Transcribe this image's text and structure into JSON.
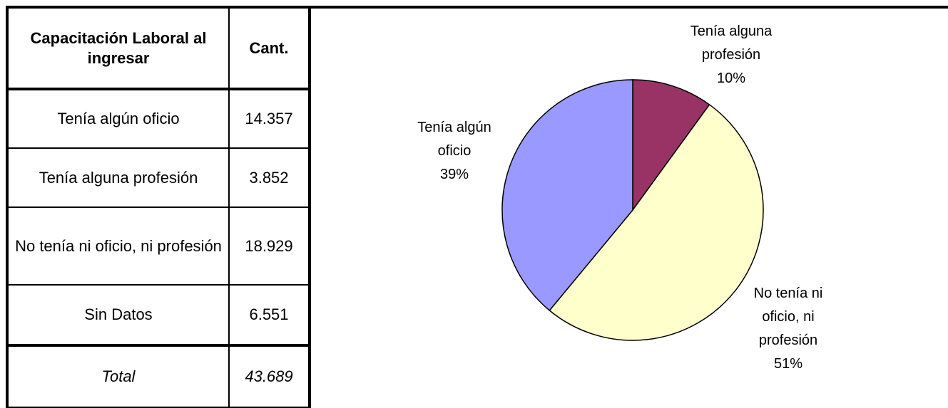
{
  "table": {
    "header": [
      "Capacitación Laboral al ingresar",
      "Cant."
    ],
    "rows": [
      [
        "Tenía algún oficio",
        "14.357"
      ],
      [
        "Tenía alguna profesión",
        "3.852"
      ],
      [
        "No tenía ni oficio, ni profesión",
        "18.929"
      ],
      [
        "Sin Datos",
        "6.551"
      ]
    ],
    "total": [
      "Total",
      "43.689"
    ]
  },
  "chart_data": {
    "type": "pie",
    "categories": [
      "Tenía alguna profesión",
      "No tenía ni oficio, ni profesión",
      "Tenía algún oficio"
    ],
    "values": [
      10,
      51,
      39
    ],
    "value_labels": [
      "10%",
      "51%",
      "39%"
    ],
    "colors": [
      "#993366",
      "#ffffcc",
      "#9999ff"
    ]
  }
}
